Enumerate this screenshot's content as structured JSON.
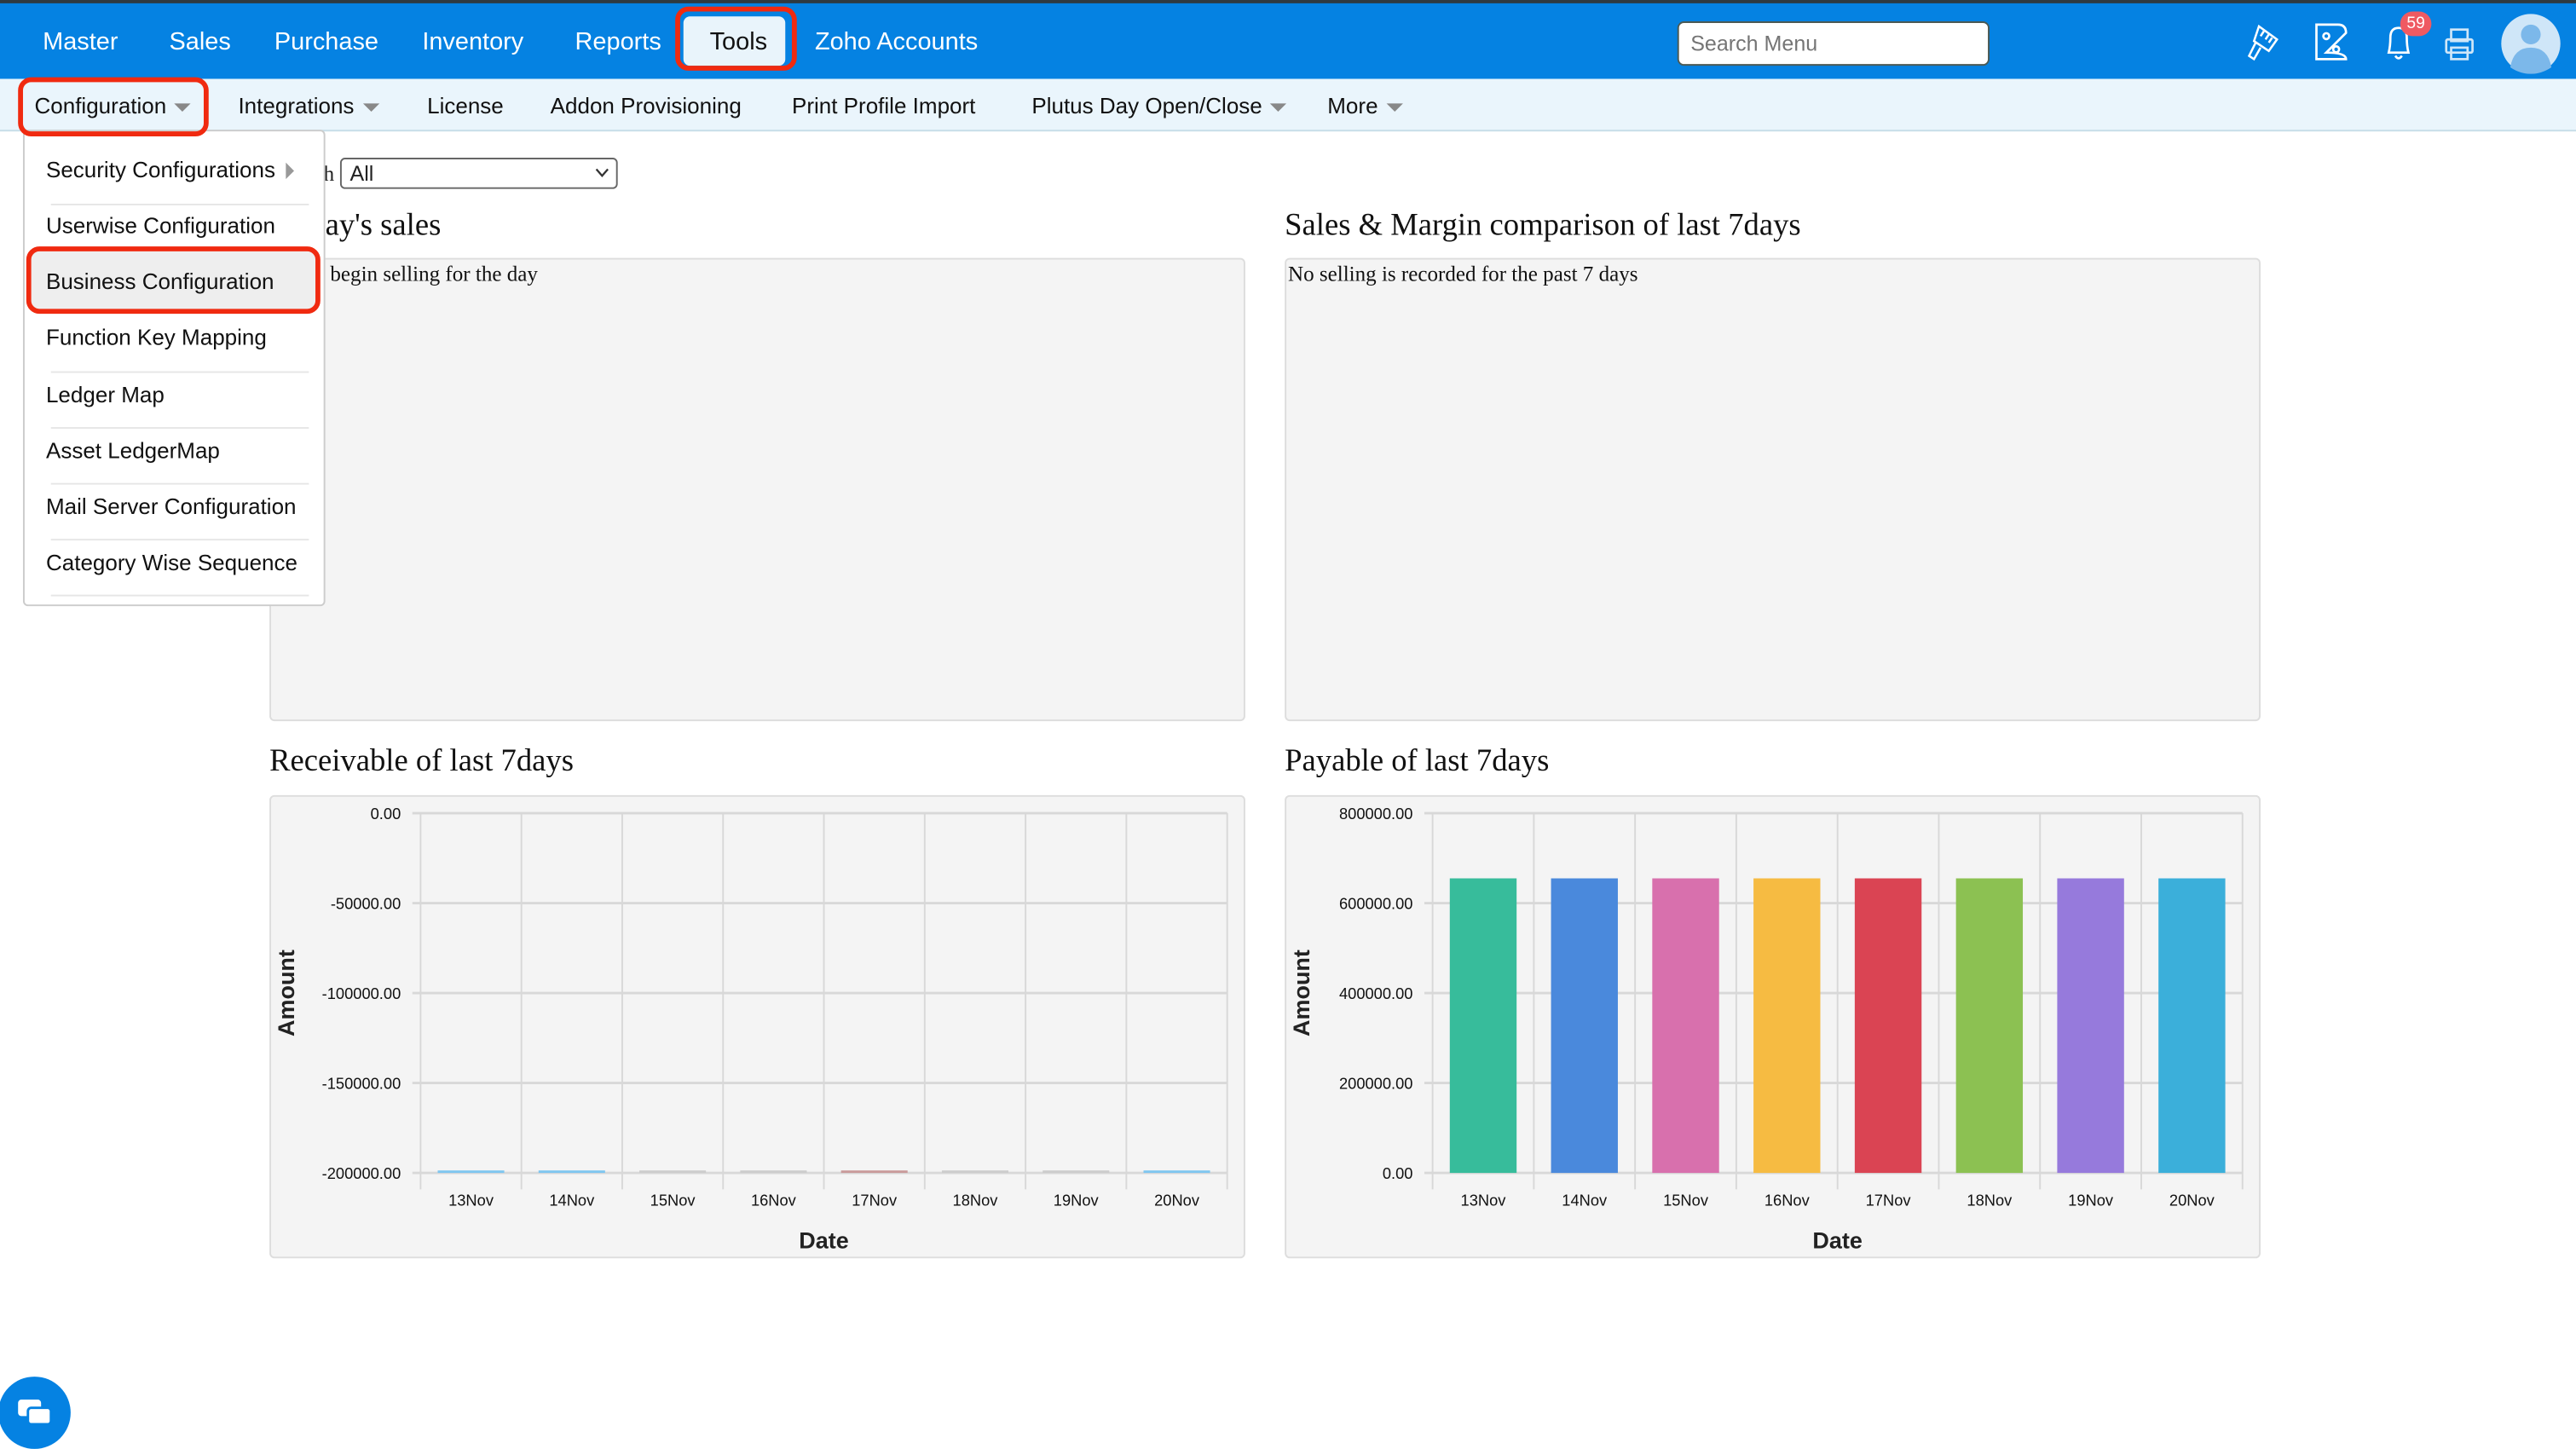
{
  "topnav": {
    "items": [
      "Master",
      "Sales",
      "Purchase",
      "Inventory",
      "Reports",
      "Tools",
      "Zoho Accounts"
    ],
    "active": "Tools",
    "search_placeholder": "Search Menu",
    "icons": [
      "brush-icon",
      "zoho-books-icon",
      "bell-icon",
      "printer-icon",
      "avatar-icon"
    ],
    "notification_count": "59"
  },
  "subnav": {
    "items": [
      "Configuration",
      "Integrations",
      "License",
      "Addon Provisioning",
      "Print Profile Import",
      "Plutus Day Open/Close",
      "More"
    ]
  },
  "dropdown": {
    "items": [
      "Security Configurations",
      "Userwise Configuration",
      "Business Configuration",
      "Function Key Mapping",
      "Ledger Map",
      "Asset LedgerMap",
      "Mail Server Configuration",
      "Category Wise Sequence"
    ],
    "highlighted": "Business Configuration"
  },
  "filter": {
    "label_fragment": "h",
    "value": "All"
  },
  "panels": {
    "today_title_fragment": "ay's sales",
    "today_text_fragment": "begin selling for the day",
    "margin_title": "Sales & Margin comparison of last 7days",
    "margin_text": "No selling is recorded for the past 7 days",
    "receivable_title": "Receivable of last 7days",
    "payable_title": "Payable of last 7days"
  },
  "colors": {
    "brand": "#0582e2",
    "highlight": "#f02a10",
    "badge": "#ef5a62"
  },
  "chart_data": [
    {
      "type": "bar",
      "title": "Receivable of last 7days",
      "xlabel": "Date",
      "ylabel": "Amount",
      "categories": [
        "13Nov",
        "14Nov",
        "15Nov",
        "16Nov",
        "17Nov",
        "18Nov",
        "19Nov",
        "20Nov"
      ],
      "yticks": [
        "0.00",
        "-50000.00",
        "-100000.00",
        "-150000.00",
        "-200000.00"
      ],
      "ylim": [
        -200000,
        0
      ],
      "values": [
        0,
        0,
        0,
        0,
        0,
        0,
        0,
        0
      ],
      "grid": true,
      "colors": [
        "#7fc6f0",
        "#7fc6f0",
        "#cccccc",
        "#cccccc",
        "#c99a9a",
        "#cccccc",
        "#cccccc",
        "#7fc6f0"
      ]
    },
    {
      "type": "bar",
      "title": "Payable of last 7days",
      "xlabel": "Date",
      "ylabel": "Amount",
      "categories": [
        "13Nov",
        "14Nov",
        "15Nov",
        "16Nov",
        "17Nov",
        "18Nov",
        "19Nov",
        "20Nov"
      ],
      "yticks": [
        "800000.00",
        "600000.00",
        "400000.00",
        "200000.00",
        "0.00"
      ],
      "ylim": [
        0,
        800000
      ],
      "values": [
        655000,
        655000,
        655000,
        655000,
        655000,
        655000,
        655000,
        655000
      ],
      "grid": true,
      "colors": [
        "#37bc9b",
        "#4a89dc",
        "#d870ad",
        "#f6bb42",
        "#da4453",
        "#8cc152",
        "#967adc",
        "#3bafda"
      ]
    }
  ]
}
